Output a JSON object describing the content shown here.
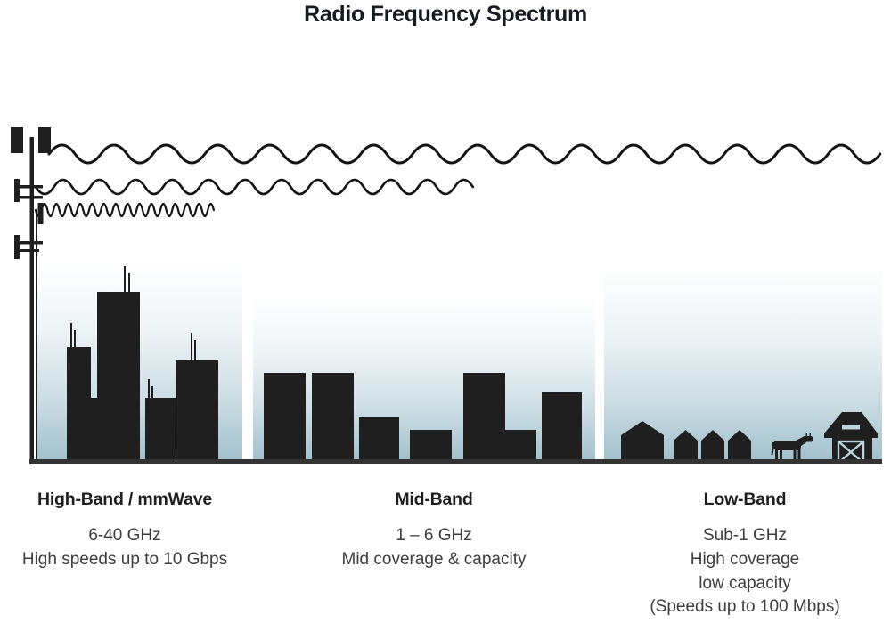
{
  "title": "Radio Frequency Spectrum",
  "colors": {
    "ink": "#1f1f1f",
    "sky_gradient_bottom": "#a2c1cd",
    "ground": "#333333",
    "body_text": "#3d3d3d"
  },
  "icons": {
    "tower": "cell-tower-icon",
    "waves": [
      "long-wavelength-wave-icon",
      "medium-wavelength-wave-icon",
      "short-wavelength-wave-icon"
    ],
    "high_band_scene": "skyscraper-skyline-icon",
    "mid_band_scene": "mid-rise-buildings-icon",
    "low_band_scene": [
      "house-icon",
      "cow-icon",
      "barn-icon"
    ]
  },
  "bands": [
    {
      "heading": "High-Band / mmWave",
      "lines": [
        "6-40 GHz",
        "High speeds up to 10 Gbps"
      ]
    },
    {
      "heading": "Mid-Band",
      "lines": [
        "1 – 6 GHz",
        "Mid coverage & capacity"
      ]
    },
    {
      "heading": "Low-Band",
      "lines": [
        "Sub-1 GHz",
        "High coverage",
        "low capacity",
        "(Speeds up to 100 Mbps)"
      ]
    }
  ]
}
